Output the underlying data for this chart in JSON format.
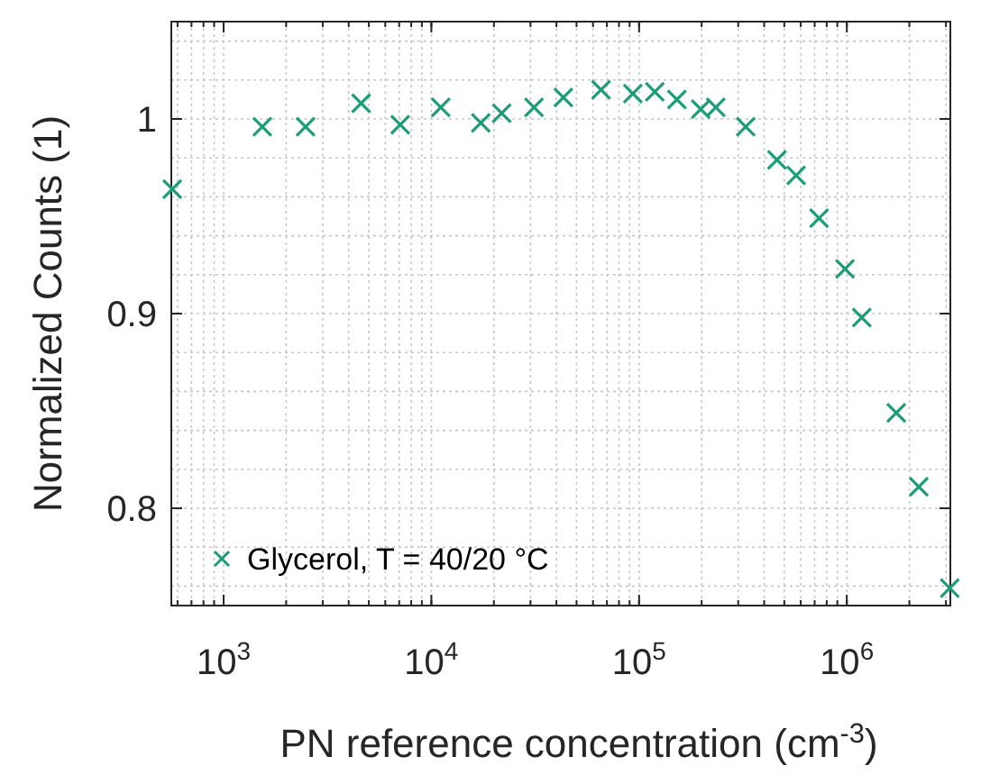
{
  "chart_data": {
    "type": "scatter",
    "xlabel": "PN reference concentration (cm$^{-3}$)",
    "ylabel": "Normalized Counts (1)",
    "log": "x",
    "grid": true,
    "legend": "bottom left",
    "marker": "cross",
    "xlim": [
      560,
      3150000
    ],
    "ylim": [
      0.75,
      1.05
    ],
    "xticks": [
      {
        "value": 1000,
        "label": "10$^{3}$"
      },
      {
        "value": 10000,
        "label": "10$^{4}$"
      },
      {
        "value": 100000,
        "label": "10$^{5}$"
      },
      {
        "value": 1000000,
        "label": "10$^{6}$"
      }
    ],
    "yticks": [
      0.8,
      0.9,
      1
    ],
    "series": [
      {
        "name": "Glycerol, T = 40/20 °C",
        "color": "#1b9e77",
        "x": [
          566,
          1535,
          2480,
          4590,
          7080,
          11100,
          17300,
          21800,
          31200,
          43200,
          65600,
          93300,
          119000,
          152000,
          198000,
          234000,
          326000,
          461000,
          570000,
          735000,
          980000,
          1180000,
          1730000,
          2220000,
          3130000
        ],
        "values": [
          0.964,
          0.996,
          0.996,
          1.008,
          0.997,
          1.006,
          0.998,
          1.003,
          1.006,
          1.011,
          1.015,
          1.013,
          1.014,
          1.01,
          1.005,
          1.006,
          0.996,
          0.979,
          0.971,
          0.949,
          0.923,
          0.898,
          0.849,
          0.811,
          0.759
        ]
      }
    ]
  }
}
